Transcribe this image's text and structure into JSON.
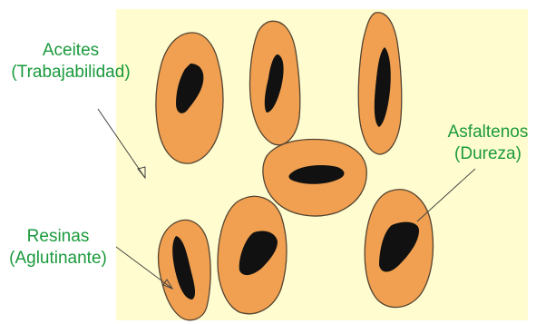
{
  "colors": {
    "background_panel": "#fffdcf",
    "aggregate_fill": "#f0a050",
    "aggregate_stroke": "#554433",
    "core_fill": "#111111",
    "label_text": "#1a9a3c",
    "arrow": "#444444"
  },
  "labels": {
    "aceites": {
      "name": "Aceites",
      "role": "(Trabajabilidad)"
    },
    "asfaltenos": {
      "name": "Asfaltenos",
      "role": "(Dureza)"
    },
    "resinas": {
      "name": "Resinas",
      "role": "(Aglutinante)"
    }
  },
  "aggregate_count": 7
}
